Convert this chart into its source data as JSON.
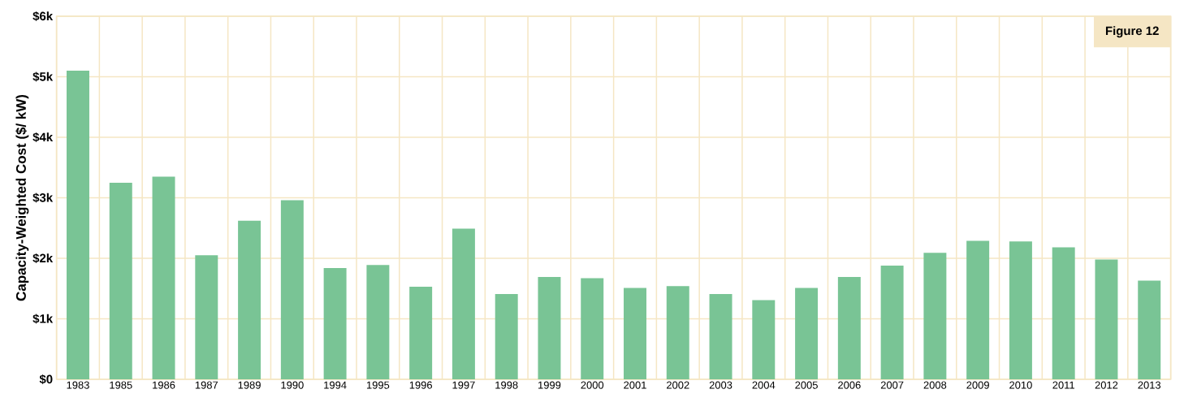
{
  "chart_data": {
    "type": "bar",
    "ylabel": "Capacity-Weighted Cost ($/ kW)",
    "categories": [
      "1983",
      "1985",
      "1986",
      "1987",
      "1989",
      "1990",
      "1994",
      "1995",
      "1996",
      "1997",
      "1998",
      "1999",
      "2000",
      "2001",
      "2002",
      "2003",
      "2004",
      "2005",
      "2006",
      "2007",
      "2008",
      "2009",
      "2010",
      "2011",
      "2012",
      "2013"
    ],
    "values": [
      5100,
      3250,
      3350,
      2050,
      2620,
      2960,
      1840,
      1890,
      1530,
      2490,
      1410,
      1690,
      1670,
      1510,
      1540,
      1410,
      1310,
      1510,
      1690,
      1880,
      2090,
      2290,
      2280,
      2180,
      1980,
      1630
    ],
    "color": "#79c495",
    "ylim": [
      0,
      6000
    ],
    "yticks": [
      {
        "value": 0,
        "label": "$0"
      },
      {
        "value": 1000,
        "label": "$1k"
      },
      {
        "value": 2000,
        "label": "$2k"
      },
      {
        "value": 3000,
        "label": "$3k"
      },
      {
        "value": 4000,
        "label": "$4k"
      },
      {
        "value": 5000,
        "label": "$5k"
      },
      {
        "value": 6000,
        "label": "$6k"
      }
    ],
    "grid": true,
    "annotations": [
      "Figure 12"
    ]
  }
}
